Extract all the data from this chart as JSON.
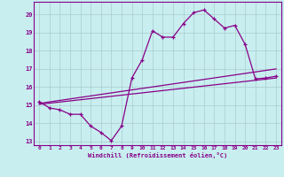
{
  "xlabel": "Windchill (Refroidissement éolien,°C)",
  "bg_color": "#c8eef0",
  "line_color": "#880088",
  "grid_color": "#aacccc",
  "xlim": [
    -0.5,
    23.5
  ],
  "ylim": [
    12.8,
    20.7
  ],
  "yticks": [
    13,
    14,
    15,
    16,
    17,
    18,
    19,
    20
  ],
  "xticks": [
    0,
    1,
    2,
    3,
    4,
    5,
    6,
    7,
    8,
    9,
    10,
    11,
    12,
    13,
    14,
    15,
    16,
    17,
    18,
    19,
    20,
    21,
    22,
    23
  ],
  "series": [
    {
      "x": [
        0,
        1,
        2,
        3,
        4,
        5,
        6,
        7,
        8,
        9,
        10,
        11,
        12,
        13,
        14,
        15,
        16,
        17,
        18,
        19,
        20,
        21,
        22,
        23
      ],
      "y": [
        15.2,
        14.85,
        14.75,
        14.5,
        14.5,
        13.85,
        13.5,
        13.05,
        13.85,
        16.5,
        17.5,
        19.1,
        18.75,
        18.75,
        19.5,
        20.1,
        20.25,
        19.75,
        19.25,
        19.4,
        18.35,
        16.45,
        16.5,
        16.6
      ],
      "marker": "+"
    },
    {
      "x": [
        0,
        23
      ],
      "y": [
        15.1,
        17.0
      ],
      "marker": null
    },
    {
      "x": [
        0,
        23
      ],
      "y": [
        15.05,
        16.5
      ],
      "marker": null
    }
  ]
}
